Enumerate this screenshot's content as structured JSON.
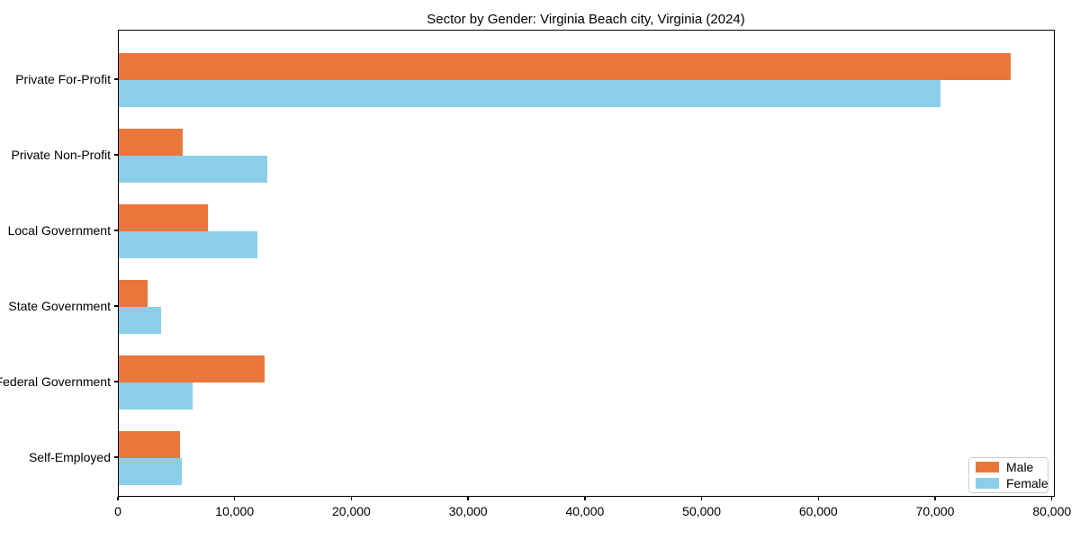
{
  "chart_data": {
    "type": "bar",
    "orientation": "horizontal",
    "title": "Sector by Gender: Virginia Beach city, Virginia (2024)",
    "categories": [
      "Private For-Profit",
      "Private Non-Profit",
      "Local Government",
      "State Government",
      "Federal Government",
      "Self-Employed"
    ],
    "series": [
      {
        "name": "Male",
        "color": "#e9773b",
        "values": [
          76400,
          5500,
          7600,
          2500,
          12500,
          5200
        ]
      },
      {
        "name": "Female",
        "color": "#8acee9",
        "values": [
          70400,
          12700,
          11900,
          3600,
          6300,
          5400
        ]
      }
    ],
    "xlabel": "",
    "ylabel": "",
    "xlim": [
      0,
      80250
    ],
    "xticks": [
      0,
      10000,
      20000,
      30000,
      40000,
      50000,
      60000,
      70000,
      80000
    ],
    "xtick_labels": [
      "0",
      "10,000",
      "20,000",
      "30,000",
      "40,000",
      "50,000",
      "60,000",
      "70,000",
      "80,000"
    ],
    "grid": false,
    "legend": {
      "position": "lower right",
      "entries": [
        "Male",
        "Female"
      ]
    }
  }
}
